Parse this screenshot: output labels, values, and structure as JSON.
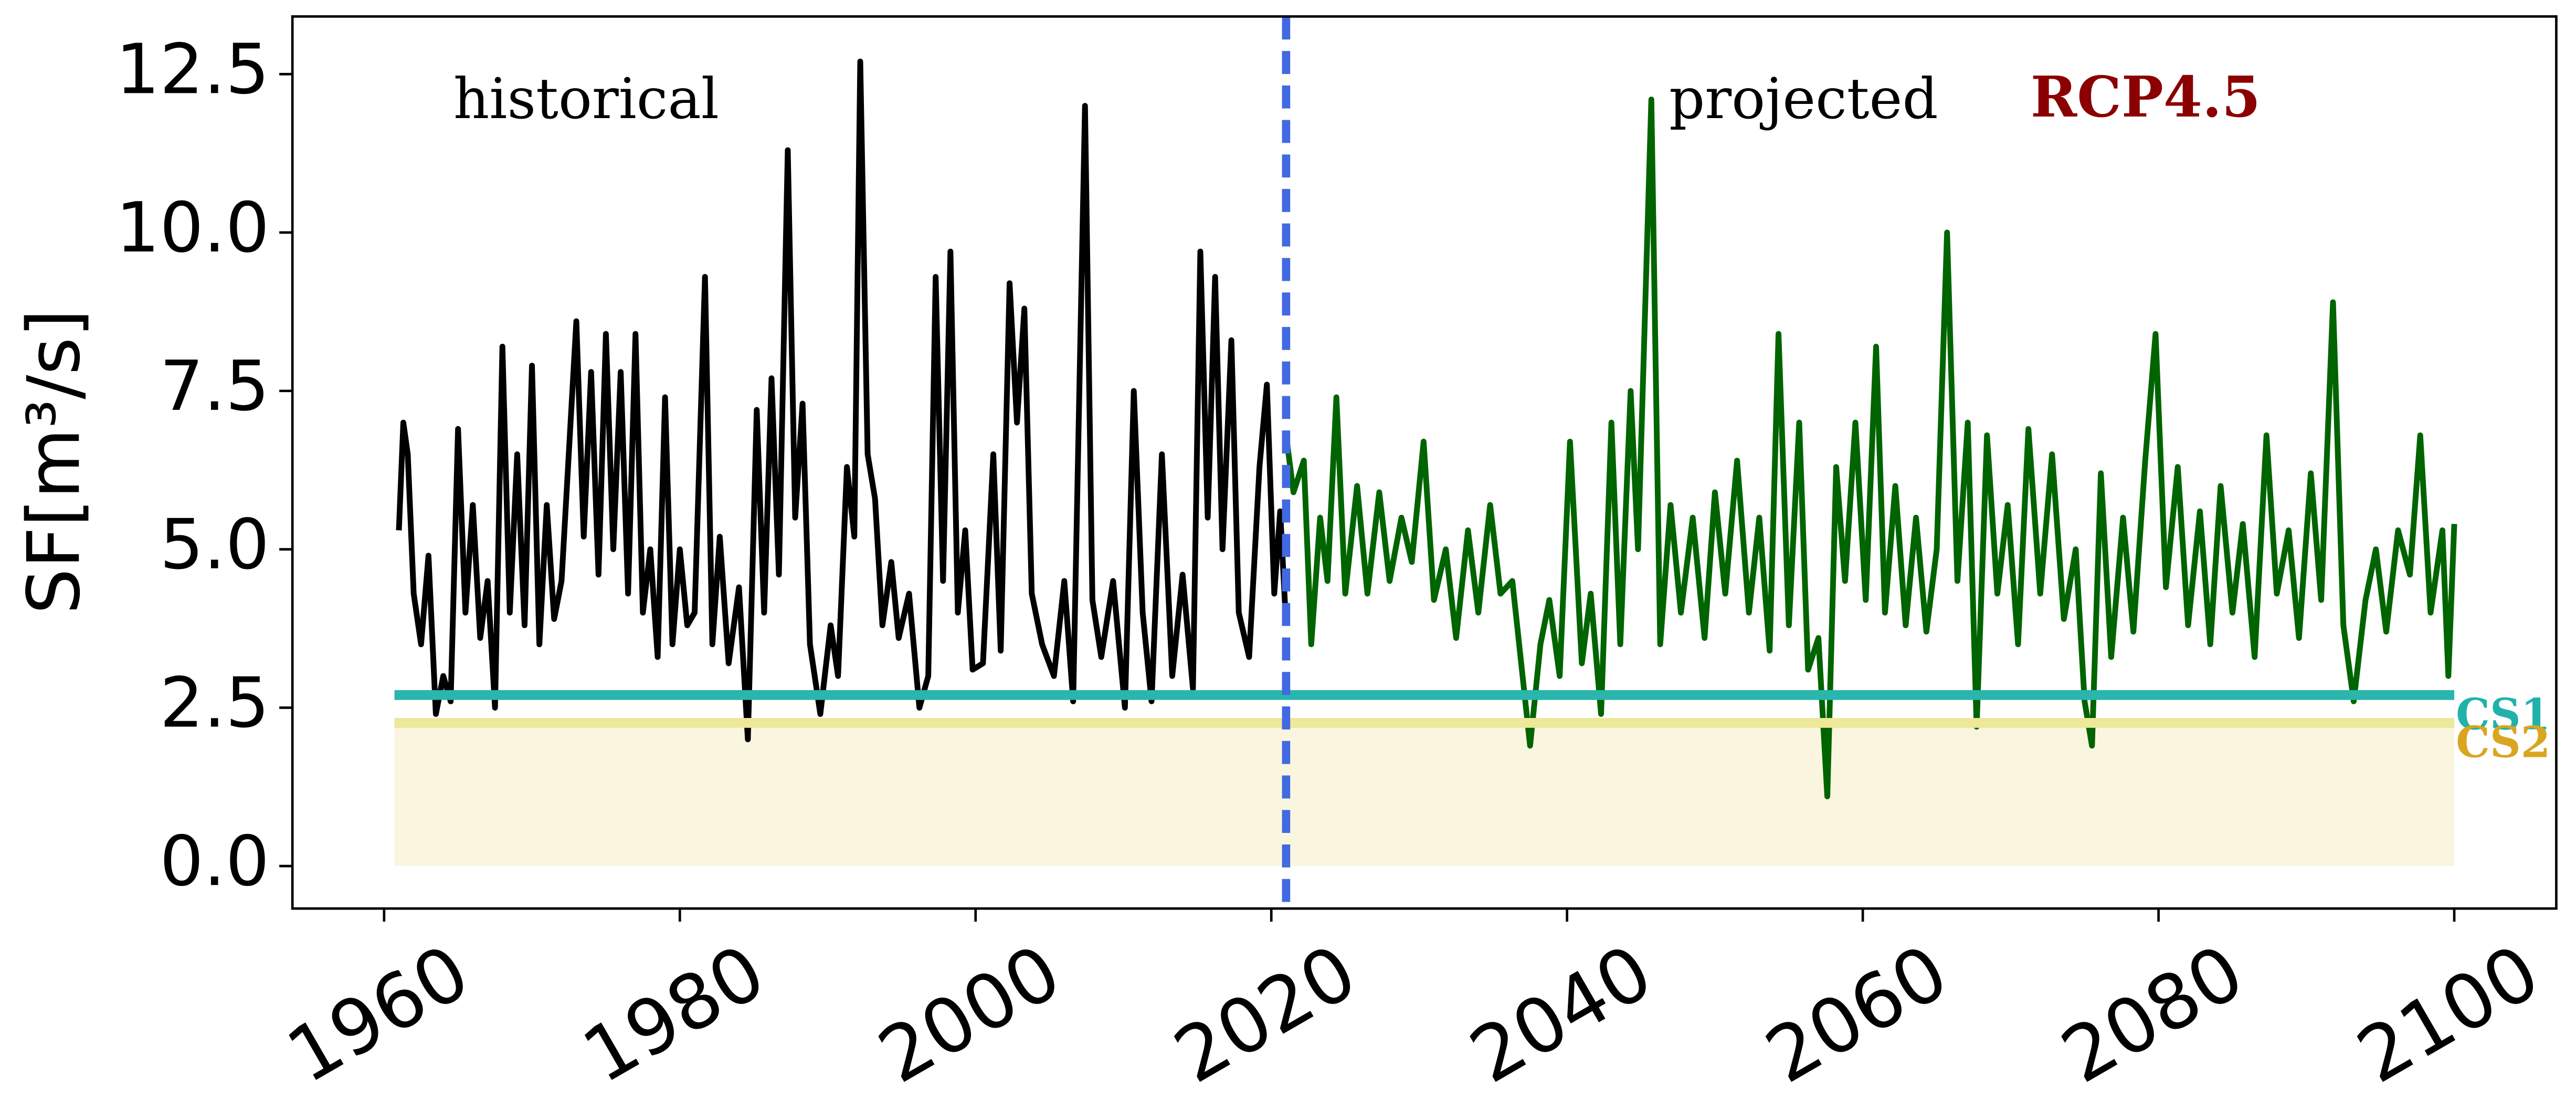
{
  "chart_data": {
    "type": "line",
    "ylabel": "SF[m³/s]",
    "annotations": [
      "historical",
      "projected",
      "RCP4.5"
    ],
    "xlim": [
      1953.8,
      2106.9
    ],
    "ylim": [
      -0.67,
      13.41
    ],
    "xticks": [
      1960,
      1980,
      2000,
      2020,
      2040,
      2060,
      2080,
      2100
    ],
    "yticks": [
      {
        "value": 0,
        "label": "0.0"
      },
      2.5,
      {
        "value": 5,
        "label": "5.0"
      },
      7.5,
      {
        "value": 10,
        "label": "10.0"
      },
      12.5
    ],
    "series": [
      {
        "color": "#000000",
        "x": [
          1961,
          1961.3,
          1961.6,
          1962,
          1962.5,
          1963,
          1963.5,
          1964,
          1964.5,
          1965,
          1965.5,
          1966,
          1966.5,
          1967,
          1967.5,
          1968,
          1968.5,
          1969,
          1969.5,
          1970,
          1970.5,
          1971,
          1971.5,
          1972,
          1973,
          1973.5,
          1974,
          1974.5,
          1975,
          1975.5,
          1976,
          1976.5,
          1977,
          1977.5,
          1978,
          1978.5,
          1979,
          1979.5,
          1980,
          1980.5,
          1981,
          1981.7,
          1982.2,
          1982.7,
          1983.3,
          1984,
          1984.6,
          1985.2,
          1985.7,
          1986.2,
          1986.7,
          1987.3,
          1987.8,
          1988.3,
          1988.8,
          1989.5,
          1990.2,
          1990.7,
          1991.3,
          1991.8,
          1992.2,
          1992.7,
          1993.2,
          1993.7,
          1994.3,
          1994.8,
          1995.5,
          1996.2,
          1996.8,
          1997.3,
          1997.8,
          1998.3,
          1998.8,
          1999.3,
          1999.8,
          2000.5,
          2001.2,
          2001.7,
          2002.3,
          2002.8,
          2003.3,
          2003.8,
          2004.5,
          2005.3,
          2006,
          2006.6,
          2007.4,
          2007.9,
          2008.5,
          2009.3,
          2010.1,
          2010.7,
          2011.3,
          2011.9,
          2012.6,
          2013.3,
          2014,
          2014.7,
          2015.2,
          2015.7,
          2016.2,
          2016.7,
          2017.3,
          2017.8,
          2018.5,
          2019.2,
          2019.7,
          2020.2,
          2020.6,
          2021
        ],
        "values": [
          5.3,
          7.0,
          6.5,
          4.3,
          3.5,
          4.9,
          2.4,
          3.0,
          2.6,
          6.9,
          4.0,
          5.7,
          3.6,
          4.5,
          2.5,
          8.2,
          4.0,
          6.5,
          3.8,
          7.9,
          3.5,
          5.7,
          3.9,
          4.5,
          8.6,
          5.2,
          7.8,
          4.6,
          8.4,
          5.0,
          7.8,
          4.3,
          8.4,
          4.0,
          5.0,
          3.3,
          7.4,
          3.5,
          5.0,
          3.8,
          4.0,
          9.3,
          3.5,
          5.2,
          3.2,
          4.4,
          2.0,
          7.2,
          4.0,
          7.7,
          4.6,
          11.3,
          5.5,
          7.3,
          3.5,
          2.4,
          3.8,
          3.0,
          6.3,
          5.2,
          12.7,
          6.5,
          5.8,
          3.8,
          4.8,
          3.6,
          4.3,
          2.5,
          3.0,
          9.3,
          4.5,
          9.7,
          4.0,
          5.3,
          3.1,
          3.2,
          6.5,
          3.4,
          9.2,
          7.0,
          8.8,
          4.3,
          3.5,
          3.0,
          4.5,
          2.6,
          12.0,
          4.2,
          3.3,
          4.5,
          2.5,
          7.5,
          4.0,
          2.6,
          6.5,
          3.0,
          4.6,
          2.8,
          9.7,
          5.5,
          9.3,
          5.0,
          8.3,
          4.0,
          3.3,
          6.3,
          7.6,
          4.3,
          5.6,
          3.8
        ]
      },
      {
        "color": "#006400",
        "x": [
          2021,
          2021.5,
          2022.2,
          2022.7,
          2023.3,
          2023.8,
          2024.4,
          2025,
          2025.8,
          2026.5,
          2027.3,
          2028,
          2028.8,
          2029.5,
          2030.3,
          2031,
          2031.8,
          2032.5,
          2033.3,
          2034,
          2034.8,
          2035.5,
          2036.3,
          2036.9,
          2037.5,
          2038.2,
          2038.8,
          2039.5,
          2040.2,
          2041,
          2041.6,
          2042.3,
          2043,
          2043.6,
          2044.3,
          2044.8,
          2045.7,
          2046.3,
          2047,
          2047.7,
          2048.5,
          2049.3,
          2050,
          2050.7,
          2051.5,
          2052.3,
          2053,
          2053.7,
          2054.3,
          2055,
          2055.7,
          2056.3,
          2057,
          2057.6,
          2058.2,
          2058.8,
          2059.5,
          2060.2,
          2060.9,
          2061.5,
          2062.2,
          2062.9,
          2063.6,
          2064.3,
          2065,
          2065.7,
          2066.4,
          2067.1,
          2067.7,
          2068.4,
          2069.1,
          2069.8,
          2070.5,
          2071.2,
          2072,
          2072.8,
          2073.6,
          2074.4,
          2075,
          2075.5,
          2076.1,
          2076.8,
          2077.6,
          2078.3,
          2079.1,
          2079.8,
          2080.5,
          2081.3,
          2082,
          2082.8,
          2083.5,
          2084.2,
          2085,
          2085.7,
          2086.5,
          2087.3,
          2088,
          2088.8,
          2089.5,
          2090.3,
          2091,
          2091.8,
          2092.5,
          2093.2,
          2094,
          2094.7,
          2095.4,
          2096.2,
          2097,
          2097.7,
          2098.4,
          2099.2,
          2099.6,
          2100
        ],
        "values": [
          6.8,
          5.9,
          6.4,
          3.5,
          5.5,
          4.5,
          7.4,
          4.3,
          6.0,
          4.3,
          5.9,
          4.5,
          5.5,
          4.8,
          6.7,
          4.2,
          5.0,
          3.6,
          5.3,
          4.0,
          5.7,
          4.3,
          4.5,
          3.2,
          1.9,
          3.5,
          4.2,
          3.0,
          6.7,
          3.2,
          4.3,
          2.4,
          7.0,
          3.5,
          7.5,
          5.0,
          12.1,
          3.5,
          5.7,
          4.0,
          5.5,
          3.6,
          5.9,
          4.3,
          6.4,
          4.0,
          5.5,
          3.4,
          8.4,
          3.8,
          7.0,
          3.1,
          3.6,
          1.1,
          6.3,
          4.5,
          7.0,
          4.2,
          8.2,
          4.0,
          6.0,
          3.8,
          5.5,
          3.7,
          5.0,
          10.0,
          4.5,
          7.0,
          2.2,
          6.8,
          4.3,
          5.7,
          3.5,
          6.9,
          4.3,
          6.5,
          3.9,
          5.0,
          2.6,
          1.9,
          6.2,
          3.3,
          5.5,
          3.7,
          6.4,
          8.4,
          4.4,
          6.3,
          3.8,
          5.6,
          3.5,
          6.0,
          4.0,
          5.4,
          3.3,
          6.8,
          4.3,
          5.3,
          3.6,
          6.2,
          4.2,
          8.9,
          3.8,
          2.6,
          4.2,
          5.0,
          3.7,
          5.3,
          4.6,
          6.8,
          4.0,
          5.3,
          3.0,
          5.4
        ]
      }
    ],
    "hlines": [
      {
        "name": "CS1",
        "value": 2.7,
        "color": "#2ab5ad",
        "label_color": "#20b2aa",
        "xrange": [
          1960.7,
          2100
        ]
      },
      {
        "name": "CS2",
        "value": 2.26,
        "color": "#ede89a",
        "label_color": "#daa520",
        "xrange": [
          1960.7,
          2100
        ]
      }
    ],
    "band": {
      "ylim": [
        0,
        2.26
      ],
      "xrange": [
        1960.7,
        2100
      ],
      "color": "#faf5de"
    },
    "vline": {
      "value": 2021,
      "color": "#4169e1"
    },
    "annotation_color": "#8b0000"
  }
}
